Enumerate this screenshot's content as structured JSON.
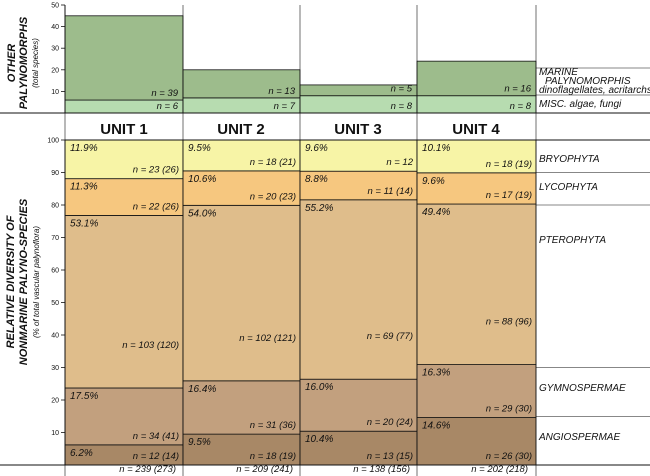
{
  "top_labels": {
    "line1": "OTHER",
    "line2": "PALYNOMORPHS",
    "sub": "(total species)"
  },
  "bottom_labels": {
    "line1": "RELATIVE DIVERSITY OF",
    "line2": "NONMARINE PALYNO-SPECIES",
    "sub": "(% of total vascular palynoflora)"
  },
  "units": [
    "UNIT 1",
    "UNIT 2",
    "UNIT 3",
    "UNIT 4"
  ],
  "top_groups": [
    "MARINE",
    "PALYNOMORPHIS",
    "dinoflagellates, acritarchs",
    "MISC. algae, fungi"
  ],
  "groups": [
    "BRYOPHYTA",
    "LYCOPHYTA",
    "PTEROPHYTA",
    "GYMNOSPERMAE",
    "ANGIOSPERMAE"
  ],
  "totals": [
    "n = 239 (273)",
    "n = 209 (241)",
    "n = 138 (156)",
    "n = 202 (218)"
  ],
  "colors": {
    "marine": "#9dbc8c",
    "misc": "#b7dcb0",
    "bryophyta": "#f7f4a6",
    "lycophyta": "#f6c77f",
    "pterophyta": "#dfbd8b",
    "gymnospermae": "#c2a07e",
    "angiospermae": "#a88866"
  },
  "chart_data": [
    {
      "type": "bar",
      "title": "OTHER PALYNOMORPHS",
      "ylabel": "(total species)",
      "categories": [
        "UNIT 1",
        "UNIT 2",
        "UNIT 3",
        "UNIT 4"
      ],
      "ylim": [
        0,
        50
      ],
      "yticks": [
        10,
        20,
        30,
        40,
        50
      ],
      "series": [
        {
          "name": "MISC. algae, fungi",
          "values": [
            6,
            7,
            8,
            8
          ],
          "labels": [
            "n = 6",
            "n = 7",
            "n = 8",
            "n = 8"
          ]
        },
        {
          "name": "MARINE PALYNOMORPHIS dinoflagellates, acritarchs",
          "values": [
            39,
            13,
            5,
            16
          ],
          "labels": [
            "n = 39",
            "n = 13",
            "n = 5",
            "n = 16"
          ]
        }
      ]
    },
    {
      "type": "bar",
      "title": "RELATIVE DIVERSITY OF NONMARINE PALYNO-SPECIES",
      "ylabel": "(% of total vascular palynoflora)",
      "categories": [
        "UNIT 1",
        "UNIT 2",
        "UNIT 3",
        "UNIT 4"
      ],
      "ylim": [
        0,
        100
      ],
      "yticks": [
        10,
        20,
        30,
        40,
        50,
        60,
        70,
        80,
        90,
        100
      ],
      "series": [
        {
          "name": "ANGIOSPERMAE",
          "values": [
            6.2,
            9.5,
            10.4,
            14.6
          ],
          "labels": [
            "6.2%",
            "9.5%",
            "10.4%",
            "14.6%"
          ],
          "counts": [
            "n = 12 (14)",
            "n = 18 (19)",
            "n = 13 (15)",
            "n = 26 (30)"
          ]
        },
        {
          "name": "GYMNOSPERMAE",
          "values": [
            17.5,
            16.4,
            16.0,
            16.3
          ],
          "labels": [
            "17.5%",
            "16.4%",
            "16.0%",
            "16.3%"
          ],
          "counts": [
            "n = 34 (41)",
            "n = 31 (36)",
            "n = 20 (24)",
            "n = 29 (30)"
          ]
        },
        {
          "name": "PTEROPHYTA",
          "values": [
            53.1,
            54.0,
            55.2,
            49.4
          ],
          "labels": [
            "53.1%",
            "54.0%",
            "55.2%",
            "49.4%"
          ],
          "counts": [
            "n = 103 (120)",
            "n = 102 (121)",
            "n = 69 (77)",
            "n = 88 (96)"
          ]
        },
        {
          "name": "LYCOPHYTA",
          "values": [
            11.3,
            10.6,
            8.8,
            9.6
          ],
          "labels": [
            "11.3%",
            "10.6%",
            "8.8%",
            "9.6%"
          ],
          "counts": [
            "n = 22 (26)",
            "n = 20 (23)",
            "n = 11 (14)",
            "n = 17 (19)"
          ]
        },
        {
          "name": "BRYOPHYTA",
          "values": [
            11.9,
            9.5,
            9.6,
            10.1
          ],
          "labels": [
            "11.9%",
            "9.5%",
            "9.6%",
            "10.1%"
          ],
          "counts": [
            "n = 23 (26)",
            "n = 18 (21)",
            "n = 12",
            "n = 18 (19)"
          ]
        }
      ]
    }
  ]
}
